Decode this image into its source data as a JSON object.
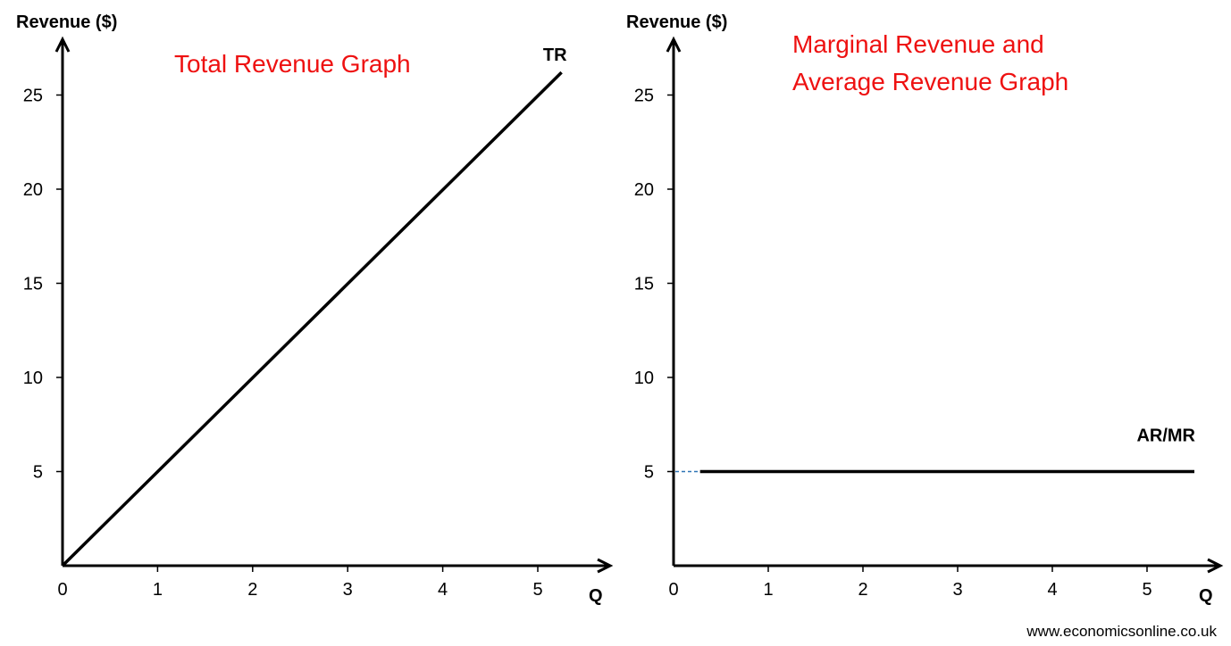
{
  "chart_data": [
    {
      "type": "line",
      "title": "Total Revenue Graph",
      "ylabel": "Revenue ($)",
      "xlabel": "Q",
      "xlim": [
        0,
        5.4
      ],
      "ylim": [
        0,
        26.5
      ],
      "x_ticks": [
        "0",
        "1",
        "2",
        "3",
        "4",
        "5"
      ],
      "y_ticks": [
        "5",
        "10",
        "15",
        "20",
        "25"
      ],
      "series": [
        {
          "name": "TR",
          "x": [
            0,
            5.25
          ],
          "y": [
            0,
            26.2
          ],
          "color": "#000000"
        }
      ]
    },
    {
      "type": "line",
      "title_lines": [
        "Marginal Revenue and",
        "Average Revenue Graph"
      ],
      "ylabel": "Revenue ($)",
      "xlabel": "Q",
      "xlim": [
        0,
        5.65
      ],
      "ylim": [
        0,
        26.5
      ],
      "x_ticks": [
        "0",
        "1",
        "2",
        "3",
        "4",
        "5"
      ],
      "y_ticks": [
        "5",
        "10",
        "15",
        "20",
        "25"
      ],
      "series": [
        {
          "name": "AR/MR",
          "x": [
            0.28,
            5.5
          ],
          "y": [
            5,
            5
          ],
          "color": "#000000"
        }
      ],
      "annotations": [
        {
          "kind": "dashed-segment",
          "x": [
            0,
            0.28
          ],
          "y": [
            5,
            5
          ],
          "color": "#2e75b6"
        }
      ]
    }
  ],
  "source_text": "www.economicsonline.co.uk",
  "colors": {
    "title": "#ee1111",
    "line": "#000000",
    "dash": "#2e75b6"
  }
}
